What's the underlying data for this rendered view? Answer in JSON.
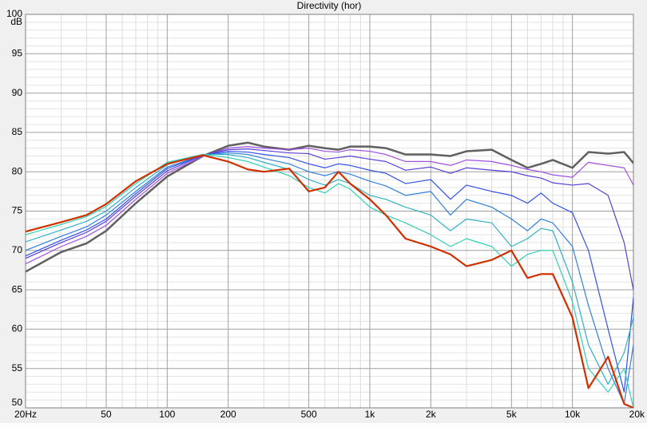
{
  "chart_data": {
    "type": "line",
    "title": "Directivity (hor)",
    "ylabel": "dB",
    "xscale": "log",
    "xlim": [
      20,
      20000
    ],
    "ylim": [
      50,
      100
    ],
    "grid": true,
    "xticks": [
      {
        "value": 20,
        "label": "20Hz"
      },
      50,
      100,
      200,
      500,
      {
        "value": 1000,
        "label": "1k"
      },
      {
        "value": 2000,
        "label": "2k"
      },
      {
        "value": 5000,
        "label": "5k"
      },
      {
        "value": 10000,
        "label": "10k"
      },
      {
        "value": 20000,
        "label": "20k"
      }
    ],
    "yticks": [
      50,
      55,
      60,
      65,
      70,
      75,
      80,
      85,
      90,
      95,
      100
    ],
    "xminorticks": [
      30,
      40,
      60,
      70,
      80,
      90,
      300,
      400,
      600,
      700,
      800,
      900,
      3000,
      4000,
      6000,
      7000,
      8000,
      9000
    ],
    "yminorticks": [
      51,
      52,
      53,
      54,
      56,
      57,
      58,
      59,
      61,
      62,
      63,
      64,
      66,
      67,
      68,
      69,
      71,
      72,
      73,
      74,
      76,
      77,
      78,
      79,
      81,
      82,
      83,
      84,
      86,
      87,
      88,
      89,
      91,
      92,
      93,
      94,
      96,
      97,
      98,
      99
    ],
    "x": [
      20,
      30,
      40,
      50,
      70,
      100,
      150,
      200,
      250,
      300,
      400,
      500,
      600,
      700,
      800,
      1000,
      1200,
      1500,
      2000,
      2500,
      3000,
      4000,
      5000,
      6000,
      7000,
      8000,
      10000,
      12000,
      15000,
      18000,
      20000
    ],
    "series": [
      {
        "color": "#606060",
        "width": 2.5,
        "values": [
          67.3,
          69.8,
          70.9,
          72.5,
          76,
          79.4,
          82.0,
          83.3,
          83.7,
          83.2,
          82.8,
          83.3,
          83.0,
          82.8,
          83.2,
          83.2,
          83.0,
          82.2,
          82.2,
          82.0,
          82.6,
          82.8,
          81.5,
          80.5,
          81.0,
          81.5,
          80.5,
          82.5,
          82.3,
          82.5,
          81.1
        ]
      },
      {
        "color": "#a050e0",
        "width": 1.2,
        "values": [
          68.3,
          70.5,
          71.8,
          73.2,
          76.5,
          79.8,
          82.0,
          83.0,
          83.2,
          83.0,
          82.8,
          83.0,
          82.6,
          82.5,
          82.8,
          82.6,
          82.2,
          81.3,
          81.3,
          80.8,
          81.5,
          81.3,
          80.8,
          80.3,
          80.0,
          79.6,
          79.3,
          81.2,
          80.8,
          80.5,
          78.3
        ]
      },
      {
        "color": "#5a3cd8",
        "width": 1.2,
        "values": [
          69.0,
          71.0,
          72.3,
          73.7,
          76.9,
          80.1,
          82.1,
          82.8,
          82.9,
          82.7,
          82.4,
          82.3,
          81.6,
          81.8,
          82.0,
          81.6,
          81.3,
          80.2,
          80.6,
          79.8,
          80.5,
          80.2,
          80.0,
          79.5,
          79.2,
          78.6,
          78.3,
          78.5,
          77.0,
          71.0,
          65.0
        ]
      },
      {
        "color": "#3050e8",
        "width": 1.2,
        "values": [
          69.3,
          71.3,
          72.6,
          74.0,
          77.2,
          80.4,
          82.1,
          82.6,
          82.5,
          82.2,
          81.8,
          81.0,
          80.5,
          81.0,
          80.8,
          80.2,
          79.8,
          78.5,
          79.0,
          76.5,
          78.3,
          77.5,
          77.0,
          76.0,
          77.3,
          76.0,
          74.8,
          70.0,
          60.0,
          52.0,
          64.0
        ]
      },
      {
        "color": "#3080d8",
        "width": 1.2,
        "values": [
          70.0,
          71.8,
          73.0,
          74.5,
          77.5,
          80.6,
          82.1,
          82.4,
          82.2,
          81.7,
          81.0,
          80.0,
          79.5,
          80.0,
          79.7,
          78.8,
          78.2,
          77.0,
          77.5,
          74.5,
          76.5,
          75.5,
          74.0,
          72.5,
          74.0,
          73.5,
          70.5,
          63.0,
          55.0,
          50.5,
          58.0
        ]
      },
      {
        "color": "#30b0c8",
        "width": 1.2,
        "values": [
          71.1,
          72.6,
          73.7,
          75.0,
          78.0,
          80.9,
          82.2,
          82.2,
          81.8,
          81.2,
          80.3,
          79.0,
          78.3,
          79.0,
          78.5,
          77.0,
          76.5,
          75.5,
          74.5,
          72.5,
          74.0,
          73.5,
          70.5,
          71.5,
          72.8,
          72.5,
          66.0,
          58.0,
          53.0,
          57.0,
          61.5
        ]
      },
      {
        "color": "#30d0b8",
        "width": 1.2,
        "values": [
          72.0,
          73.3,
          74.3,
          75.6,
          78.5,
          81.2,
          82.2,
          81.8,
          81.3,
          80.6,
          79.5,
          78.0,
          77.3,
          78.5,
          77.8,
          75.5,
          74.5,
          73.5,
          72.0,
          70.5,
          71.5,
          70.5,
          68.0,
          69.5,
          70.0,
          70.0,
          63.5,
          55.0,
          52.0,
          55.0,
          50.0
        ]
      },
      {
        "color": "#d03000",
        "width": 2.2,
        "values": [
          72.4,
          73.6,
          74.5,
          75.9,
          78.8,
          81.0,
          82.1,
          81.3,
          80.3,
          80.0,
          80.4,
          77.5,
          78.0,
          80.0,
          78.5,
          76.5,
          74.5,
          71.5,
          70.5,
          69.5,
          68.0,
          68.8,
          70.0,
          66.5,
          67.0,
          67.0,
          61.5,
          52.5,
          56.5,
          50.5,
          50.0
        ]
      }
    ]
  }
}
